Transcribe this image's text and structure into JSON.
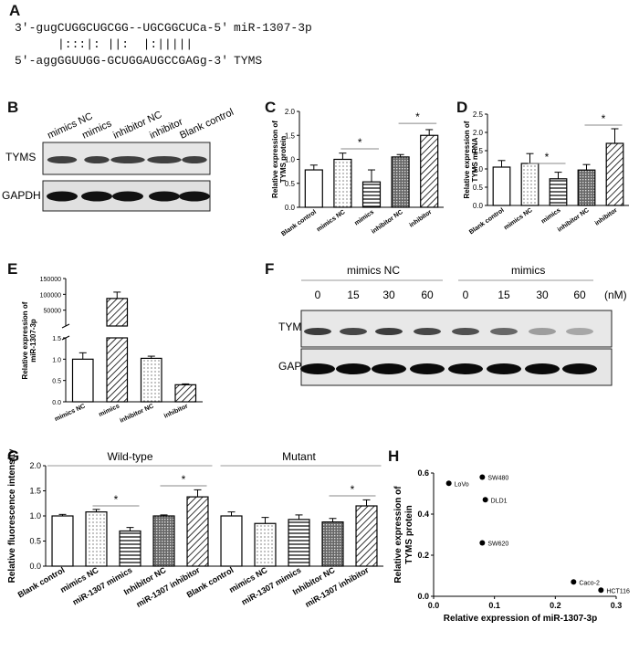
{
  "panels": {
    "A": "A",
    "B": "B",
    "C": "C",
    "D": "D",
    "E": "E",
    "F": "F",
    "G": "G",
    "H": "H"
  },
  "panelA": {
    "line1": "3'-gugCUGGCUGCGG--UGCGGCUCa-5'",
    "line1_label": "miR-1307-3p",
    "line2": "|:::|: ||:  |:|||||",
    "line3": "5'-aggGGUUGG-GCUGGAUGCCGAGg-3'",
    "line3_label": "TYMS"
  },
  "panelB": {
    "lanes": [
      "mimics NC",
      "mimics",
      "inhibitor NC",
      "inhibitor",
      "Blank control"
    ],
    "rows": [
      "TYMS",
      "GAPDH"
    ]
  },
  "panelF": {
    "groups": [
      "mimics NC",
      "mimics"
    ],
    "doses": [
      "0",
      "15",
      "30",
      "60",
      "0",
      "15",
      "30",
      "60"
    ],
    "unit": "(nM)",
    "rows": [
      "TYMS",
      "GAPDH"
    ]
  },
  "star": "*",
  "chart_data": [
    {
      "id": "C",
      "type": "bar",
      "categories": [
        "Blank control",
        "mimics NC",
        "mimics",
        "inhibitor NC",
        "inhibitor"
      ],
      "values": [
        0.78,
        1.0,
        0.53,
        1.05,
        1.5
      ],
      "errors": [
        0.1,
        0.13,
        0.25,
        0.05,
        0.12
      ],
      "ylabel": "Relative expression of TYMS protein",
      "ylim": [
        0,
        2.0
      ],
      "yticks": [
        "0.0",
        "0.5",
        "1.0",
        "1.5",
        "2.0"
      ],
      "significance": [
        {
          "from": "mimics NC",
          "to": "mimics",
          "label": "*"
        },
        {
          "from": "inhibitor NC",
          "to": "inhibitor",
          "label": "*"
        }
      ]
    },
    {
      "id": "D",
      "type": "bar",
      "categories": [
        "Blank control",
        "mimics NC",
        "mimics",
        "inhibitor NC",
        "inhibitor"
      ],
      "values": [
        1.05,
        1.15,
        0.73,
        0.97,
        1.7
      ],
      "errors": [
        0.18,
        0.27,
        0.18,
        0.15,
        0.4
      ],
      "ylabel": "Relative expression of TYMS mRNA",
      "ylim": [
        0,
        2.5
      ],
      "yticks": [
        "0.0",
        "0.5",
        "1.0",
        "1.5",
        "2.0",
        "2.5"
      ],
      "significance": [
        {
          "from": "mimics NC",
          "to": "mimics",
          "label": "*"
        },
        {
          "from": "inhibitor NC",
          "to": "inhibitor",
          "label": "*"
        }
      ]
    },
    {
      "id": "E",
      "type": "bar",
      "categories": [
        "mimics NC",
        "mimics",
        "inhibitor NC",
        "inhibitor"
      ],
      "values": [
        1.0,
        87000,
        1.02,
        0.4
      ],
      "errors": [
        0.15,
        20000,
        0.05,
        0.02
      ],
      "ylabel": "Relative expression of miR-1307-3p",
      "axis_break": true,
      "yticks_lower": [
        "0.0",
        "0.5",
        "1.0",
        "1.5"
      ],
      "yticks_upper": [
        "50000",
        "100000",
        "150000"
      ]
    },
    {
      "id": "G",
      "type": "bar",
      "categories": [
        "Blank control",
        "mimics NC",
        "miR-1307 mimics",
        "Inhibitor NC",
        "miR-1307 inhibitor",
        "Blank control",
        "mimics NC",
        "miR-1307 mimics",
        "Inhibitor NC",
        "miR-1307 inhibitor"
      ],
      "values": [
        1.0,
        1.08,
        0.7,
        1.0,
        1.38,
        1.0,
        0.85,
        0.93,
        0.88,
        1.2
      ],
      "errors": [
        0.03,
        0.05,
        0.07,
        0.02,
        0.14,
        0.08,
        0.12,
        0.09,
        0.07,
        0.12
      ],
      "groups": [
        "Wild-type",
        "Mutant"
      ],
      "ylabel": "Relative fluorescence intensity",
      "ylim": [
        0,
        2.0
      ],
      "yticks": [
        "0.0",
        "0.5",
        "1.0",
        "1.5",
        "2.0"
      ],
      "significance": [
        {
          "from": "mimics NC",
          "to": "miR-1307 mimics",
          "label": "*"
        },
        {
          "from": "Inhibitor NC",
          "to": "miR-1307 inhibitor",
          "label": "*"
        },
        {
          "from": "Inhibitor NC ",
          "to": "miR-1307 inhibitor ",
          "label": "*"
        }
      ]
    },
    {
      "id": "H",
      "type": "scatter",
      "points": [
        {
          "label": "LoVo",
          "x": 0.025,
          "y": 0.55
        },
        {
          "label": "SW480",
          "x": 0.08,
          "y": 0.58
        },
        {
          "label": "DLD1",
          "x": 0.085,
          "y": 0.47
        },
        {
          "label": "SW620",
          "x": 0.08,
          "y": 0.26
        },
        {
          "label": "Caco-2",
          "x": 0.23,
          "y": 0.07
        },
        {
          "label": "HCT116",
          "x": 0.275,
          "y": 0.03
        }
      ],
      "xlabel": "Relative expression of miR-1307-3p",
      "ylabel": "Relative expression of TYMS protein",
      "xlim": [
        0,
        0.3
      ],
      "ylim": [
        0,
        0.6
      ],
      "xticks": [
        "0.0",
        "0.1",
        "0.2",
        "0.3"
      ],
      "yticks": [
        "0.0",
        "0.2",
        "0.4",
        "0.6"
      ]
    }
  ]
}
